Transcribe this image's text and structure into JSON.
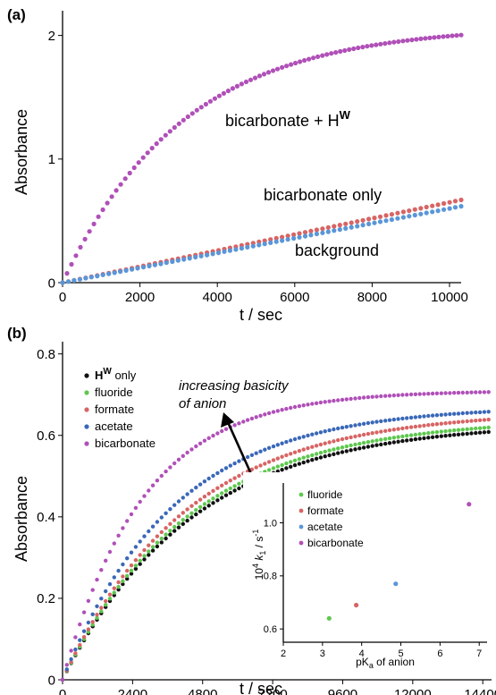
{
  "colors": {
    "bicarbonate": "#b050b8",
    "formate": "#d86464",
    "background": "#5a96d8",
    "acetate": "#3a68b8",
    "fluoride": "#5ec84e",
    "hw": "#111111"
  },
  "chart_data": [
    {
      "type": "scatter",
      "panel_label": "(a)",
      "xlabel": "t / sec",
      "ylabel": "Absorbance",
      "xlim": [
        0,
        10300
      ],
      "ylim": [
        0,
        2.2
      ],
      "xticks": [
        "0",
        "2000",
        "4000",
        "6000",
        "8000",
        "10000"
      ],
      "yticks": [
        "0",
        "1",
        "2"
      ],
      "series": [
        {
          "name": "bicarbonate + H",
          "superscript": "W",
          "model": "exp",
          "a": 2.08,
          "k": 0.00032,
          "x_start": 0,
          "x_end": 10300,
          "n": 90,
          "color": "bicarbonate"
        },
        {
          "name": "bicarbonate only",
          "model": "linear",
          "slope": 6.5e-05,
          "x_start": 0,
          "x_end": 10300,
          "n": 70,
          "color": "formate"
        },
        {
          "name": "background",
          "model": "linear",
          "slope": 6e-05,
          "x_start": 0,
          "x_end": 10300,
          "n": 70,
          "color": "background"
        }
      ]
    },
    {
      "type": "scatter",
      "panel_label": "(b)",
      "xlabel": "t / sec",
      "ylabel": "Absorbance",
      "xlim": [
        0,
        14700
      ],
      "ylim": [
        0,
        0.83
      ],
      "xticks": [
        "0",
        "2400",
        "4800",
        "7200",
        "9600",
        "12000",
        "14400"
      ],
      "yticks": [
        "0",
        "0.2",
        "0.4",
        "0.6",
        "0.8"
      ],
      "annotation": [
        "increasing basicity",
        "of anion"
      ],
      "legend": [
        {
          "label": "H",
          "superscript": "W",
          "suffix": " only",
          "color": "hw"
        },
        {
          "label": "fluoride",
          "color": "fluoride"
        },
        {
          "label": "formate",
          "color": "formate"
        },
        {
          "label": "acetate",
          "color": "acetate"
        },
        {
          "label": "bicarbonate",
          "color": "bicarbonate"
        }
      ],
      "series": [
        {
          "name": "H^W only",
          "model": "exp",
          "a": 0.632,
          "k": 0.000225,
          "x_start": 0,
          "x_end": 14600,
          "n": 100,
          "color": "hw"
        },
        {
          "name": "fluoride",
          "model": "exp",
          "a": 0.642,
          "k": 0.000229,
          "x_start": 0,
          "x_end": 14600,
          "n": 100,
          "color": "fluoride"
        },
        {
          "name": "formate",
          "model": "exp",
          "a": 0.66,
          "k": 0.000235,
          "x_start": 0,
          "x_end": 14600,
          "n": 100,
          "color": "formate"
        },
        {
          "name": "acetate",
          "model": "exp",
          "a": 0.672,
          "k": 0.000265,
          "x_start": 0,
          "x_end": 14600,
          "n": 100,
          "color": "acetate"
        },
        {
          "name": "bicarbonate",
          "model": "exp",
          "a": 0.71,
          "k": 0.00036,
          "x_start": 0,
          "x_end": 14600,
          "n": 100,
          "color": "bicarbonate"
        }
      ]
    },
    {
      "type": "scatter",
      "inset": true,
      "xlabel": "pK",
      "xlabel_sub": "a",
      "xlabel_suffix": " of anion",
      "ylabel_prefix": "10",
      "ylabel_sup": "4",
      "ylabel_var": " k",
      "ylabel_sub": "1",
      "ylabel_unit": " / s",
      "ylabel_unit_sup": "-1",
      "xlim": [
        2,
        7.2
      ],
      "ylim": [
        0.55,
        1.15
      ],
      "xticks": [
        "2",
        "3",
        "4",
        "5",
        "6",
        "7"
      ],
      "yticks": [
        "0.6",
        "0.8",
        "1.0"
      ],
      "series": [
        {
          "name": "fluoride",
          "x": [
            3.17
          ],
          "y": [
            0.64
          ],
          "color": "fluoride"
        },
        {
          "name": "formate",
          "x": [
            3.86
          ],
          "y": [
            0.69
          ],
          "color": "formate"
        },
        {
          "name": "acetate",
          "x": [
            4.87
          ],
          "y": [
            0.77
          ],
          "color": "background"
        },
        {
          "name": "bicarbonate",
          "x": [
            6.74
          ],
          "y": [
            1.07
          ],
          "color": "bicarbonate"
        }
      ]
    }
  ]
}
